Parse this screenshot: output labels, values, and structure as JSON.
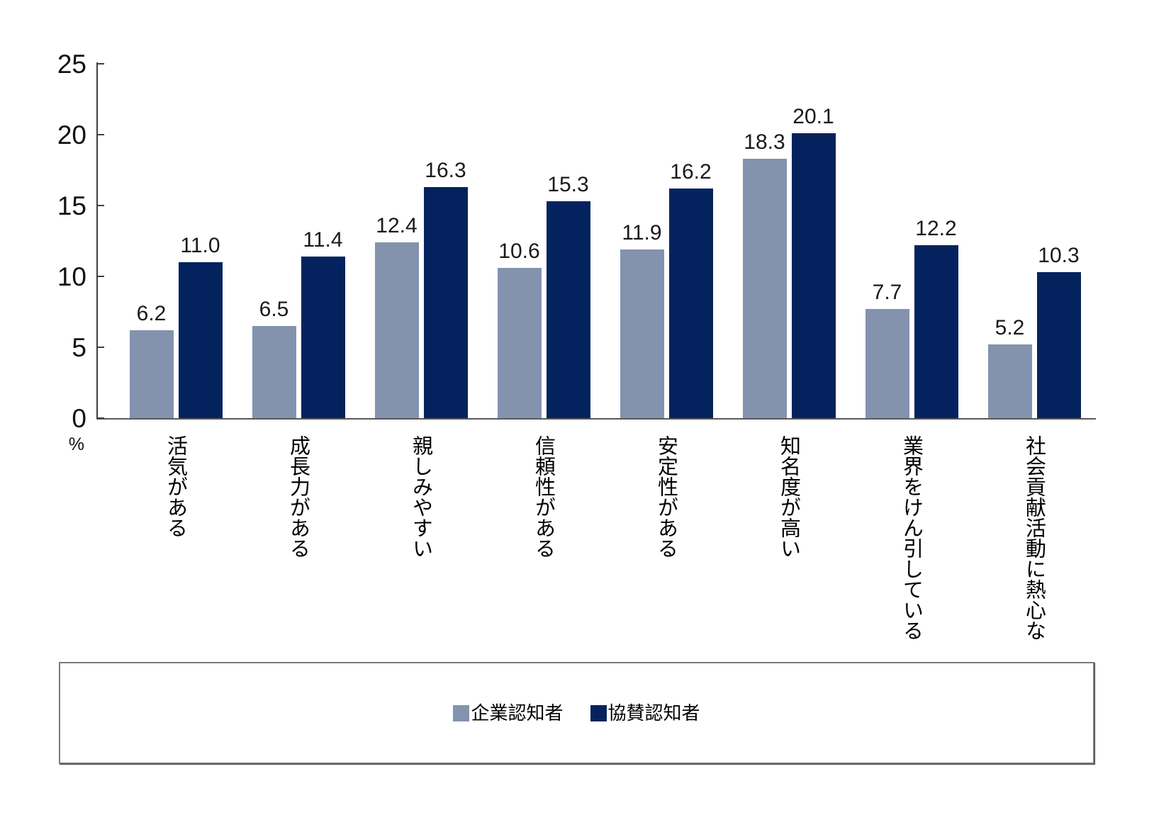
{
  "chart_data": {
    "type": "bar",
    "title": "",
    "unit_label": "%",
    "categories": [
      "活気がある",
      "成長力がある",
      "親しみやすい",
      "信頼性がある",
      "安定性がある",
      "知名度が高い",
      "業界をけん引している",
      "社会貢献活動に熱心な"
    ],
    "series": [
      {
        "name": "企業認知者",
        "color": "#8393AE",
        "values": [
          6.2,
          6.5,
          12.4,
          10.6,
          11.9,
          18.3,
          7.7,
          5.2
        ]
      },
      {
        "name": "協賛認知者",
        "color": "#04235E",
        "values": [
          11.0,
          11.4,
          16.3,
          15.3,
          16.2,
          20.1,
          12.2,
          10.3
        ]
      }
    ],
    "ylim": [
      0,
      25
    ],
    "yticks": [
      0,
      5,
      10,
      15,
      20,
      25
    ],
    "value_labels_shown": true,
    "value_label_decimals": 1,
    "grid": false,
    "legend_position": "bottom-boxed"
  }
}
